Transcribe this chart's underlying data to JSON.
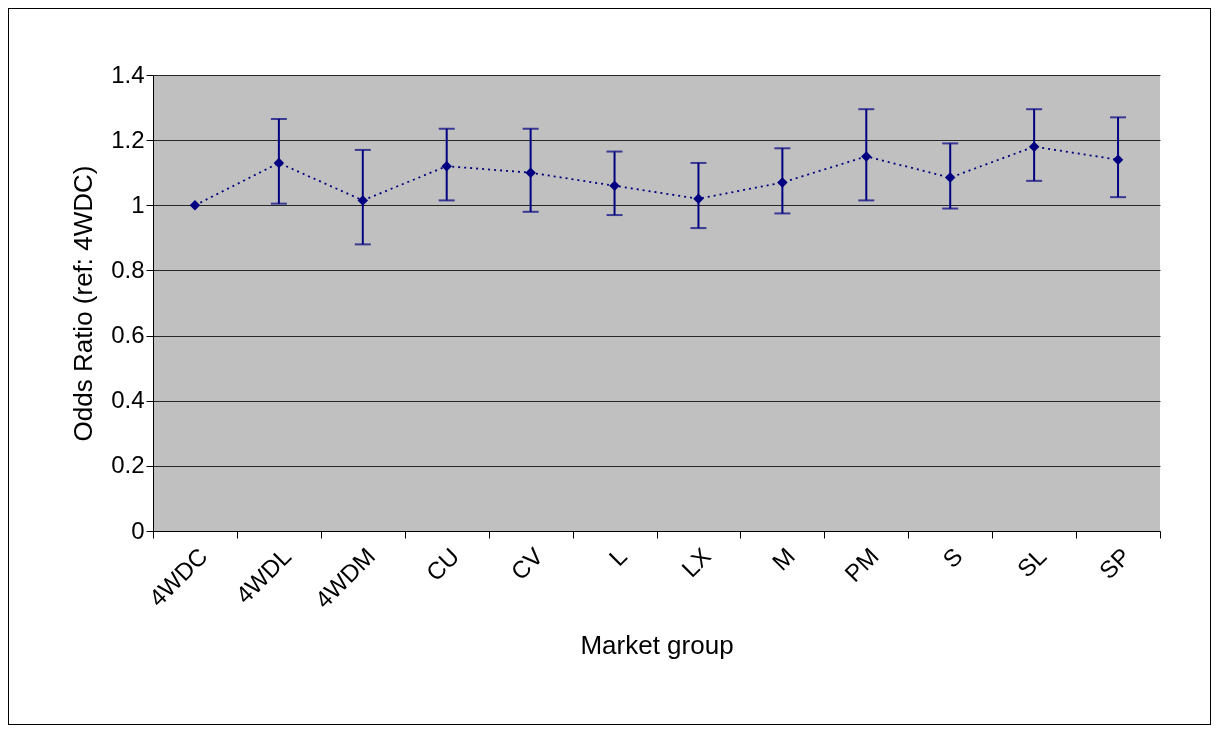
{
  "chart_data": {
    "type": "line",
    "xlabel": "Market group",
    "ylabel": "Odds Ratio (ref: 4WDC)",
    "categories": [
      "4WDC",
      "4WDL",
      "4WDM",
      "CU",
      "CV",
      "L",
      "LX",
      "M",
      "PM",
      "S",
      "SL",
      "SP"
    ],
    "series": [
      {
        "color": "#000080",
        "values": [
          1.0,
          1.13,
          1.015,
          1.12,
          1.1,
          1.06,
          1.02,
          1.07,
          1.15,
          1.085,
          1.18,
          1.14
        ],
        "errors": [
          null,
          [
            1.005,
            1.265
          ],
          [
            0.88,
            1.17
          ],
          [
            1.015,
            1.235
          ],
          [
            0.98,
            1.235
          ],
          [
            0.97,
            1.165
          ],
          [
            0.93,
            1.13
          ],
          [
            0.975,
            1.175
          ],
          [
            1.015,
            1.295
          ],
          [
            0.99,
            1.19
          ],
          [
            1.075,
            1.295
          ],
          [
            1.025,
            1.27
          ]
        ]
      }
    ],
    "ylim": [
      0,
      1.4
    ],
    "yticks": [
      0,
      0.2,
      0.4,
      0.6,
      0.8,
      1,
      1.2,
      1.4
    ],
    "grid": "y",
    "marker": "diamond",
    "line_style": "dotted"
  }
}
